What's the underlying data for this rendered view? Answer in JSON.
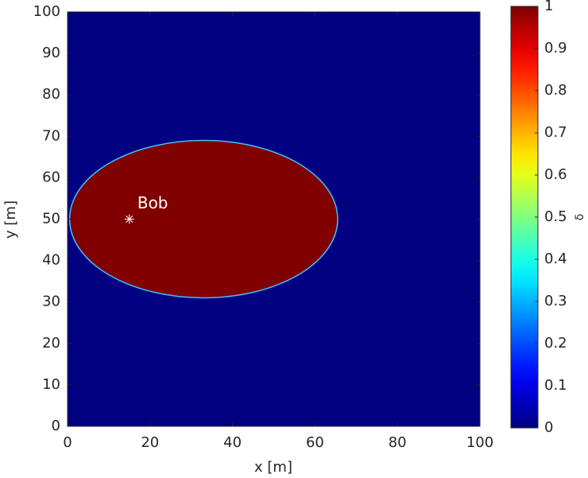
{
  "chart_data": {
    "type": "heatmap",
    "xlabel": "x [m]",
    "ylabel": "y [m]",
    "xlim": [
      0,
      100
    ],
    "ylim": [
      0,
      100
    ],
    "xticks": [
      0,
      20,
      40,
      60,
      80,
      100
    ],
    "yticks": [
      0,
      10,
      20,
      30,
      40,
      50,
      60,
      70,
      80,
      90,
      100
    ],
    "colormap": "jet",
    "clim": [
      0,
      1
    ],
    "colorbar_label": "δ",
    "colorbar_ticks": [
      0,
      0.1,
      0.2,
      0.3,
      0.4,
      0.5,
      0.6,
      0.7,
      0.8,
      0.9,
      1
    ],
    "background_value": 0,
    "regions": [
      {
        "shape": "ellipse",
        "cx": 33,
        "cy": 50,
        "rx": 32.5,
        "ry": 19,
        "value": 1
      }
    ],
    "points": [
      {
        "x": 15,
        "y": 50,
        "label": "Bob",
        "color": "#ffffff"
      }
    ]
  }
}
